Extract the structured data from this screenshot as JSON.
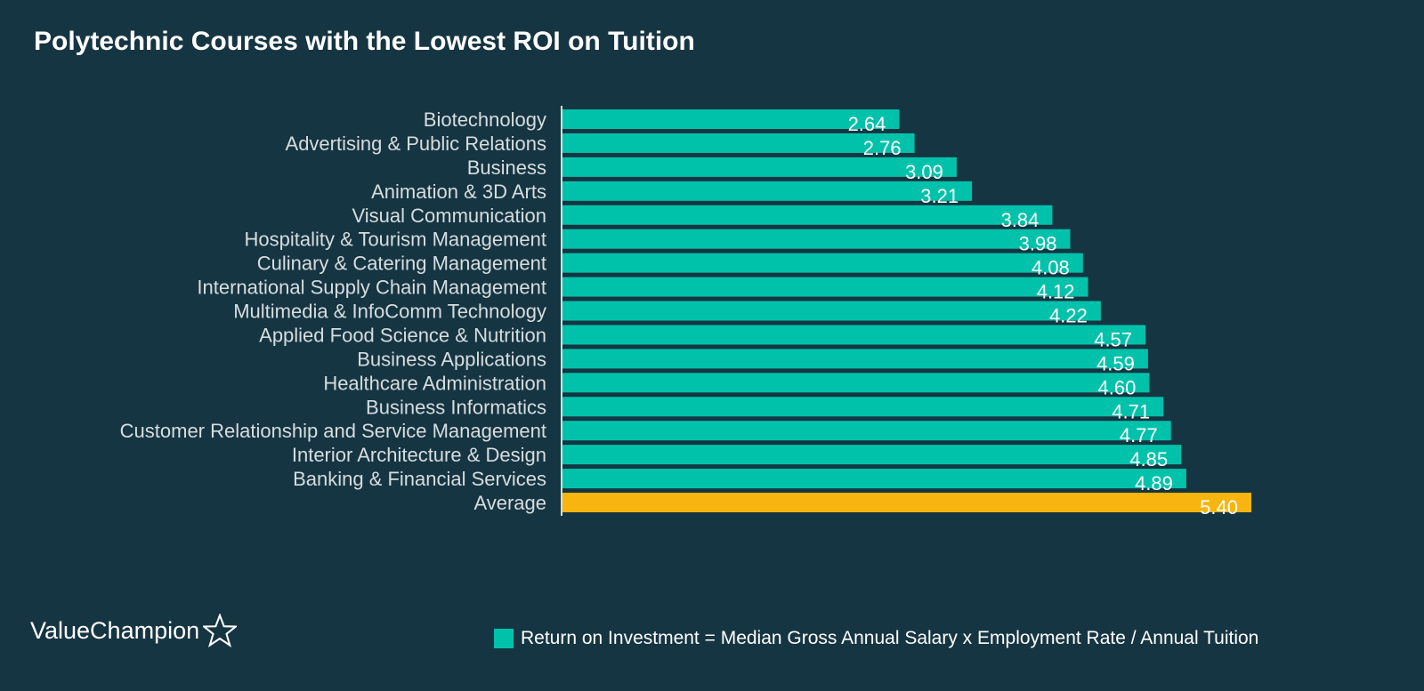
{
  "colors": {
    "background": "#163542",
    "bar": "#00c2ab",
    "average_bar": "#f9b50f",
    "axis": "#d6dde0"
  },
  "logo": {
    "text": "ValueChampion",
    "icon": "star-outline-icon"
  },
  "legend": {
    "text": "Return on Investment = Median Gross Annual Salary x Employment Rate / Annual Tuition"
  },
  "chart_data": {
    "type": "bar",
    "orientation": "horizontal",
    "title": "Polytechnic Courses with the Lowest ROI on Tuition",
    "xlabel": "",
    "ylabel": "",
    "xlim": [
      0,
      5.4
    ],
    "grid": false,
    "legend_position": "bottom",
    "categories": [
      "Biotechnology",
      "Advertising & Public Relations",
      "Business",
      "Animation & 3D Arts",
      "Visual Communication",
      "Hospitality & Tourism Management",
      "Culinary & Catering Management",
      "International Supply Chain Management",
      "Multimedia & InfoComm Technology",
      "Applied Food Science & Nutrition",
      "Business Applications",
      "Healthcare Administration",
      "Business Informatics",
      "Customer Relationship and Service Management",
      "Interior Architecture & Design",
      "Banking & Financial Services",
      "Average"
    ],
    "values": [
      2.64,
      2.76,
      3.09,
      3.21,
      3.84,
      3.98,
      4.08,
      4.12,
      4.22,
      4.57,
      4.59,
      4.6,
      4.71,
      4.77,
      4.85,
      4.89,
      5.4
    ],
    "value_labels": [
      "2.64",
      "2.76",
      "3.09",
      "3.21",
      "3.84",
      "3.98",
      "4.08",
      "4.12",
      "4.22",
      "4.57",
      "4.59",
      "4.60",
      "4.71",
      "4.77",
      "4.85",
      "4.89",
      "5.40"
    ],
    "highlight_category": "Average"
  }
}
